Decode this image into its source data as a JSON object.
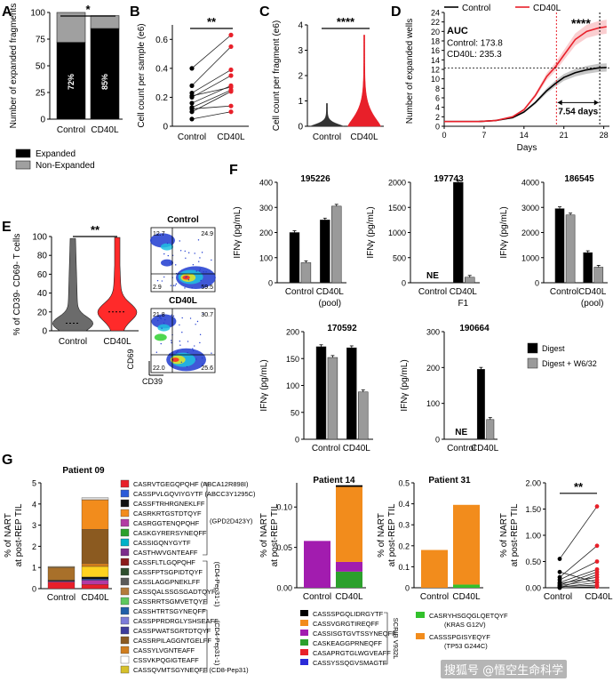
{
  "panels": {
    "A": "A",
    "B": "B",
    "C": "C",
    "D": "D",
    "E": "E",
    "F": "F",
    "G": "G"
  },
  "chart_data": [
    {
      "id": "A",
      "type": "bar",
      "ylabel": "Number of expanded fragments",
      "categories": [
        "Control",
        "CD40L"
      ],
      "series": [
        {
          "name": "Expanded",
          "values": [
            72,
            85
          ],
          "color": "#000000"
        },
        {
          "name": "Non-Expanded",
          "values": [
            28,
            12
          ],
          "color": "#a0a0a0"
        }
      ],
      "bar_labels": [
        "72%",
        "85%"
      ],
      "ylim": [
        0,
        100
      ],
      "yticks": [
        0,
        25,
        50,
        75,
        100
      ],
      "significance": "*",
      "legend": [
        {
          "label": "Expanded",
          "color": "#000000"
        },
        {
          "label": "Non-Expanded",
          "color": "#a0a0a0"
        }
      ]
    },
    {
      "id": "B",
      "type": "scatter",
      "ylabel": "Cell count per sample (e6)",
      "categories": [
        "Control",
        "CD40L"
      ],
      "pairs": [
        [
          0.4,
          0.63
        ],
        [
          0.28,
          0.55
        ],
        [
          0.23,
          0.39
        ],
        [
          0.21,
          0.27
        ],
        [
          0.2,
          0.35
        ],
        [
          0.16,
          0.28
        ],
        [
          0.13,
          0.25
        ],
        [
          0.12,
          0.14
        ],
        [
          0.1,
          0.24
        ],
        [
          0.05,
          0.1
        ]
      ],
      "ylim": [
        0,
        0.7
      ],
      "yticks": [
        0,
        0.2,
        0.4,
        0.6
      ],
      "significance": "**"
    },
    {
      "id": "C",
      "type": "violin",
      "ylabel": "Cell count per fragment (e6)",
      "categories": [
        "Control",
        "CD40L"
      ],
      "max_values": [
        0.9,
        3.6
      ],
      "ylim": [
        0,
        4
      ],
      "yticks": [
        0,
        1,
        2,
        3,
        4
      ],
      "significance": "****"
    },
    {
      "id": "D",
      "type": "line",
      "xlabel": "Days",
      "ylabel": "Number of expanded wells",
      "x": [
        0,
        3,
        6,
        9,
        12,
        14,
        16,
        18,
        19.5,
        21,
        23,
        25,
        27,
        28.5
      ],
      "series": [
        {
          "name": "Control",
          "color": "#000000",
          "values": [
            1,
            1,
            1,
            1.2,
            1.8,
            3,
            5,
            7.5,
            9,
            10.3,
            11.3,
            11.9,
            12.3,
            12.4
          ]
        },
        {
          "name": "CD40L",
          "color": "#e8202a",
          "values": [
            1,
            1,
            1,
            1.2,
            2,
            3.5,
            6.5,
            10.5,
            12.5,
            15,
            18.3,
            20,
            20.7,
            21
          ]
        }
      ],
      "xlim": [
        0,
        29
      ],
      "xticks": [
        0,
        7,
        14,
        21,
        28
      ],
      "ylim": [
        0,
        24
      ],
      "yticks": [
        0,
        2,
        4,
        6,
        8,
        10,
        12,
        14,
        16,
        18,
        20,
        22,
        24
      ],
      "auc": {
        "title": "AUC",
        "control": "Control: 173.8",
        "cd40l": "CD40L: 235.3"
      },
      "interval_label": "7.54 days",
      "significance": "****"
    },
    {
      "id": "E",
      "type": "violin",
      "ylabel": "% of CD39- CD69- T cells",
      "categories": [
        "Control",
        "CD40L"
      ],
      "ylim": [
        0,
        100
      ],
      "yticks": [
        0,
        20,
        40,
        60,
        80,
        100
      ],
      "significance": "**",
      "flow": {
        "control": {
          "title": "Control",
          "quadrants": [
            "12.7",
            "24.9",
            "2.9",
            "59.5"
          ]
        },
        "cd40l": {
          "title": "CD40L",
          "quadrants": [
            "21.8",
            "30.7",
            "22.0",
            "25.6"
          ]
        },
        "xaxis": "CD39",
        "yaxis": "CD69"
      }
    },
    {
      "id": "F",
      "type": "bar",
      "ylabel": "IFNγ (pg/mL)",
      "legend": [
        {
          "label": "Digest",
          "color": "#000000"
        },
        {
          "label": "Digest + W6/32",
          "color": "#9a9a9a"
        }
      ],
      "plots": [
        {
          "title": "195226",
          "groups": [
            "Control",
            "CD40L"
          ],
          "group_sub": [
            "",
            "(pool)"
          ],
          "digest": [
            200,
            250
          ],
          "w632": [
            80,
            305
          ],
          "ylim": [
            0,
            400
          ],
          "yticks": [
            0,
            100,
            200,
            300,
            400
          ]
        },
        {
          "title": "197743",
          "groups": [
            "Control",
            "CD40L"
          ],
          "group_sub": [
            "",
            "F1"
          ],
          "digest": [
            null,
            2000
          ],
          "w632": [
            null,
            110
          ],
          "ylim": [
            0,
            2000
          ],
          "yticks": [
            0,
            500,
            1000,
            1500,
            2000
          ],
          "ne": "NE"
        },
        {
          "title": "186545",
          "groups": [
            "Control",
            "CD40L"
          ],
          "group_sub": [
            "",
            "(pool)"
          ],
          "digest": [
            2950,
            1200
          ],
          "w632": [
            2700,
            620
          ],
          "ylim": [
            0,
            4000
          ],
          "yticks": [
            0,
            1000,
            2000,
            3000,
            4000
          ]
        },
        {
          "title": "170592",
          "groups": [
            "Control",
            "CD40L"
          ],
          "group_sub": [
            "",
            ""
          ],
          "digest": [
            172,
            170
          ],
          "w632": [
            152,
            88
          ],
          "ylim": [
            0,
            200
          ],
          "yticks": [
            0,
            50,
            100,
            150,
            200
          ]
        },
        {
          "title": "190664",
          "groups": [
            "Control",
            "CD40L"
          ],
          "group_sub": [
            "",
            ""
          ],
          "digest": [
            null,
            195
          ],
          "w632": [
            null,
            55
          ],
          "ylim": [
            0,
            300
          ],
          "yticks": [
            0,
            100,
            200,
            300
          ],
          "ne": "NE"
        }
      ]
    },
    {
      "id": "G",
      "type": "bar",
      "ylabel": "% of NART at post-REP TIL",
      "categories": [
        "Control",
        "CD40L"
      ],
      "patients": [
        {
          "title": "Patient 09",
          "ylim": [
            0,
            5
          ],
          "yticks": [
            0,
            1,
            2,
            3,
            4,
            5
          ],
          "stacks": [
            [
              {
                "c": "#e8202a",
                "v": 0.3
              },
              {
                "c": "#b33aa3",
                "v": 0.05
              },
              {
                "c": "#2b2b2b",
                "v": 0.05
              },
              {
                "c": "#a8702a",
                "v": 0.6
              },
              {
                "c": "#9b8a6a",
                "v": 0.05
              }
            ],
            [
              {
                "c": "#e8202a",
                "v": 0.2
              },
              {
                "c": "#b33aa3",
                "v": 0.2
              },
              {
                "c": "#2b5bd8",
                "v": 0.05
              },
              {
                "c": "#111111",
                "v": 0.1
              },
              {
                "c": "#ffd21f",
                "v": 0.5
              },
              {
                "c": "#d07d1d",
                "v": 0.15
              },
              {
                "c": "#8b5a20",
                "v": 1.6
              },
              {
                "c": "#f28c1c",
                "v": 1.4
              },
              {
                "c": "#d9d9d9",
                "v": 0.1
              }
            ]
          ]
        },
        {
          "title": "Patient 14",
          "ylim": [
            0,
            0.13
          ],
          "yticks": [
            0,
            0.05,
            0.1
          ],
          "stacks": [
            [
              {
                "c": "#a21caf",
                "v": 0.058
              }
            ],
            [
              {
                "c": "#2ca02c",
                "v": 0.02
              },
              {
                "c": "#a21caf",
                "v": 0.012
              },
              {
                "c": "#f28c1c",
                "v": 0.093
              },
              {
                "c": "#000000",
                "v": 0.002
              }
            ]
          ]
        },
        {
          "title": "Patient 31",
          "ylim": [
            0,
            0.5
          ],
          "yticks": [
            0,
            0.1,
            0.2,
            0.3,
            0.4,
            0.5
          ],
          "stacks": [
            [
              {
                "c": "#f28c1c",
                "v": 0.18
              }
            ],
            [
              {
                "c": "#32c12c",
                "v": 0.015
              },
              {
                "c": "#f28c1c",
                "v": 0.38
              }
            ]
          ]
        },
        {
          "title": "",
          "ylim": [
            0,
            2
          ],
          "yticks": [
            0,
            0.5,
            1,
            1.5,
            2
          ],
          "significance": "**",
          "pairs": [
            [
              0.55,
              1.55
            ],
            [
              0.3,
              0.1
            ],
            [
              0.2,
              0.8
            ],
            [
              0.15,
              0.5
            ],
            [
              0.1,
              0.35
            ],
            [
              0.08,
              0.2
            ],
            [
              0.05,
              0.3
            ],
            [
              0.04,
              0.15
            ],
            [
              0.02,
              0.05
            ],
            [
              0.01,
              0.1
            ],
            [
              0,
              0.25
            ],
            [
              0,
              0.02
            ]
          ]
        }
      ],
      "legend_groups": [
        {
          "items": [
            {
              "seq": "CASRVTGEGQPQHF (ABCA12R898I)",
              "color": "#e8202a"
            },
            {
              "seq": "CASSPVLGQVIYGYTF (ABCC3Y1295C)",
              "color": "#2b5bd8"
            },
            {
              "seq": "CASSFTRHRGNEKLFF",
              "color": "#111111"
            },
            {
              "seq": "CASRKRTGSTDTQYF",
              "color": "#f28c1c"
            },
            {
              "seq": "CASRGGTENQPQHF",
              "color": "#b33aa3"
            },
            {
              "seq": "CASKGYRERSYNEQFF",
              "color": "#2ca02c"
            },
            {
              "seq": "CASSIGQNYGYTF",
              "color": "#00b2c8"
            },
            {
              "seq": "CASTHWVGNTEAFF",
              "color": "#7b2c8b"
            }
          ],
          "bracket": "(GPD2D423Y)"
        },
        {
          "items": [
            {
              "seq": "CASSFLTLGQPQHF",
              "color": "#8b1a1a"
            },
            {
              "seq": "CASSFPTSGPIDTQYF",
              "color": "#2f4f2f"
            },
            {
              "seq": "CASSLAGGPNEKLFF",
              "color": "#5a5a5a"
            },
            {
              "seq": "CASSQALSSGSGADTQYF",
              "color": "#b47a3a"
            },
            {
              "seq": "CASSRRTSGMVETQYF",
              "color": "#5ec85e"
            }
          ],
          "bracket": "(CD4-Pep31-1)"
        },
        {
          "items": [
            {
              "seq": "CASSHTRTSGYNEQFF",
              "color": "#1f5fa8"
            },
            {
              "seq": "CASSPPRDRGLYSHSEAFF",
              "color": "#7b7bd8"
            },
            {
              "seq": "CASSPWATSGRTDTQYF",
              "color": "#3c3c9c"
            },
            {
              "seq": "CASSRPILAGGNTGELFF",
              "color": "#8b5a20"
            },
            {
              "seq": "CASSYLVGNTEAFF",
              "color": "#d07d1d"
            },
            {
              "seq": "CSSVKPQGIGTEAFF",
              "color": "#ffffff"
            },
            {
              "seq": "CASSQVMTSGYNEQFF (CD8-Pep31)",
              "color": "#d6c02a"
            }
          ],
          "bracket": "(CD4-Pep31-1)"
        }
      ],
      "legend_p14": {
        "items": [
          {
            "seq": "CASSSPGQLIDRGYTF",
            "color": "#000000"
          },
          {
            "seq": "CASSVGRGTIREQFF",
            "color": "#f28c1c"
          },
          {
            "seq": "CASSISGTGVTSSYNEQFF",
            "color": "#a21caf"
          },
          {
            "seq": "CASKEAGGPRNEQFF",
            "color": "#2ca02c"
          },
          {
            "seq": "CASAPRGTGLWGVEAFF",
            "color": "#e8202a"
          },
          {
            "seq": "CASSYSSQGVSMAGTF",
            "color": "#2b2bd8"
          }
        ],
        "bracket": "SCRIB V932L"
      },
      "legend_p31": [
        {
          "seq": "CASRYHSGQGLQETQYF",
          "sub": "(KRAS G12V)",
          "color": "#32c12c"
        },
        {
          "seq": "CASSSPGISYEQYF",
          "sub": "(TP53 G244C)",
          "color": "#f28c1c"
        }
      ]
    }
  ],
  "watermark": "搜狐号 @悟空生命科学"
}
